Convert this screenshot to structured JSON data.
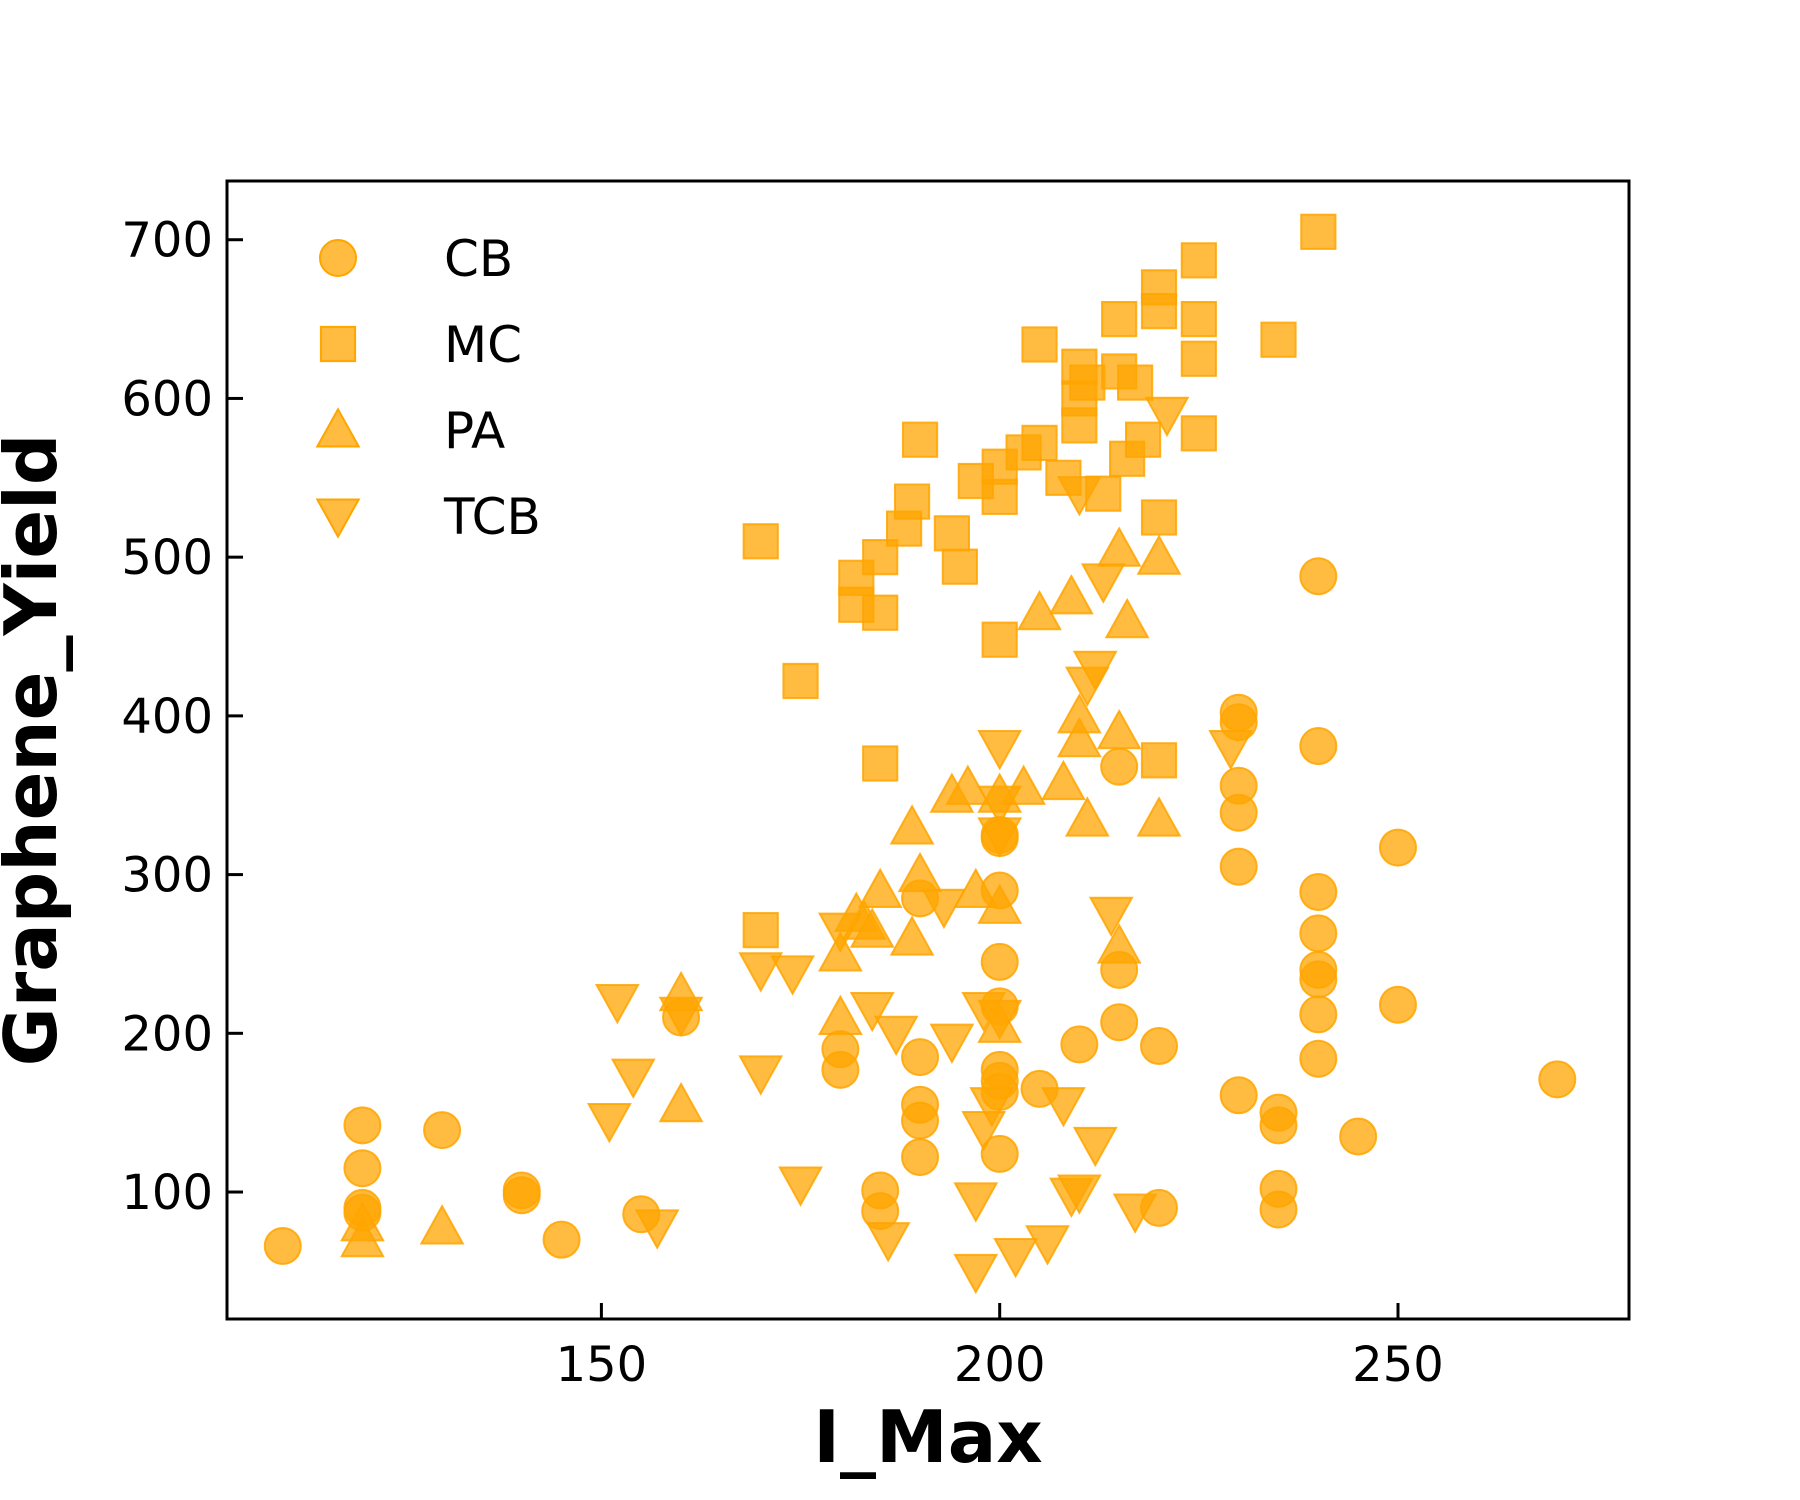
{
  "chart_data": {
    "type": "scatter",
    "xlabel": "I_Max",
    "ylabel": "Graphene_Yield",
    "xlim": [
      103,
      279
    ],
    "ylim": [
      20,
      737
    ],
    "xticks": [
      150,
      200,
      250
    ],
    "yticks": [
      100,
      200,
      300,
      400,
      500,
      600,
      700
    ],
    "tick_direction": "in",
    "grid": false,
    "legend_position": "top-left",
    "marker_color": "#FFA500",
    "series": [
      {
        "name": "CB",
        "marker": "circle",
        "x": [
          110,
          120,
          120,
          120,
          120,
          130,
          140,
          140,
          145,
          155,
          160,
          180,
          180,
          185,
          185,
          190,
          190,
          190,
          190,
          190,
          200,
          200,
          200,
          200,
          200,
          200,
          200,
          200,
          200,
          205,
          210,
          215,
          215,
          215,
          220,
          220,
          230,
          230,
          230,
          230,
          230,
          230,
          235,
          235,
          235,
          235,
          240,
          240,
          240,
          240,
          240,
          240,
          240,
          240,
          245,
          250,
          250,
          270
        ],
        "y": [
          66,
          142,
          115,
          90,
          87,
          139,
          101,
          98,
          70,
          86,
          210,
          190,
          177,
          101,
          88,
          285,
          185,
          155,
          145,
          122,
          325,
          290,
          245,
          217,
          177,
          170,
          163,
          124,
          323,
          165,
          193,
          368,
          240,
          207,
          192,
          90,
          402,
          396,
          356,
          339,
          305,
          161,
          150,
          142,
          102,
          89,
          488,
          381,
          289,
          263,
          240,
          234,
          212,
          184,
          135,
          317,
          218,
          171
        ]
      },
      {
        "name": "MC",
        "marker": "square",
        "x": [
          170,
          170,
          175,
          182,
          182,
          185,
          185,
          185,
          188,
          189,
          190,
          194,
          195,
          197,
          200,
          200,
          200,
          203,
          205,
          205,
          208,
          210,
          210,
          210,
          211,
          213,
          215,
          215,
          216,
          217,
          218,
          220,
          220,
          220,
          220,
          225,
          225,
          225,
          225,
          235,
          240
        ],
        "y": [
          510,
          265,
          422,
          487,
          470,
          370,
          500,
          465,
          518,
          535,
          574,
          515,
          494,
          548,
          557,
          538,
          448,
          566,
          572,
          634,
          550,
          620,
          600,
          583,
          610,
          540,
          617,
          650,
          562,
          610,
          574,
          670,
          655,
          525,
          372,
          687,
          650,
          625,
          578,
          637,
          705
        ]
      },
      {
        "name": "PA",
        "marker": "triangle-up",
        "x": [
          120,
          120,
          130,
          160,
          160,
          180,
          180,
          182,
          183,
          184,
          185,
          189,
          189,
          190,
          194,
          196,
          197,
          200,
          200,
          200,
          203,
          205,
          208,
          209,
          210,
          210,
          211,
          215,
          215,
          215,
          216,
          220,
          220
        ],
        "y": [
          80,
          70,
          78,
          225,
          155,
          210,
          250,
          275,
          270,
          265,
          290,
          330,
          260,
          300,
          350,
          355,
          290,
          350,
          280,
          205,
          355,
          465,
          358,
          475,
          385,
          400,
          335,
          390,
          505,
          255,
          460,
          500,
          335
        ]
      },
      {
        "name": "TCB",
        "marker": "triangle-down",
        "x": [
          151,
          152,
          154,
          157,
          160,
          170,
          170,
          174,
          175,
          180,
          184,
          186,
          187,
          193,
          194,
          197,
          197,
          198,
          198,
          199,
          200,
          200,
          200,
          200,
          202,
          206,
          208,
          209,
          210,
          210,
          211,
          212,
          212,
          213,
          214,
          217,
          221,
          229
        ],
        "y": [
          145,
          220,
          173,
          78,
          212,
          240,
          175,
          238,
          105,
          265,
          215,
          70,
          200,
          280,
          195,
          95,
          50,
          215,
          140,
          155,
          325,
          380,
          345,
          210,
          60,
          68,
          155,
          98,
          100,
          540,
          420,
          130,
          430,
          485,
          275,
          88,
          590,
          380
        ]
      }
    ]
  }
}
